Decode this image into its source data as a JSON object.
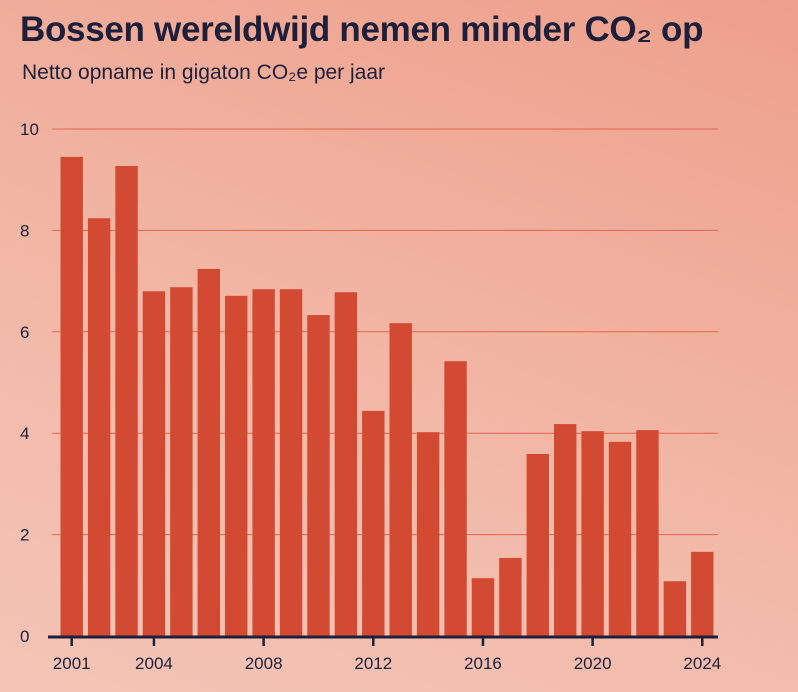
{
  "chart_data": {
    "type": "bar",
    "title": "Bossen wereldwijd nemen minder CO₂ op",
    "subtitle": "Netto opname in gigaton CO₂e per jaar",
    "categories": [
      "2001",
      "2002",
      "2003",
      "2004",
      "2005",
      "2006",
      "2007",
      "2008",
      "2009",
      "2010",
      "2011",
      "2012",
      "2013",
      "2014",
      "2015",
      "2016",
      "2017",
      "2018",
      "2019",
      "2020",
      "2021",
      "2022",
      "2023",
      "2024"
    ],
    "values": [
      9.45,
      8.24,
      9.27,
      6.8,
      6.88,
      7.24,
      6.71,
      6.84,
      6.84,
      6.33,
      6.78,
      4.44,
      6.17,
      4.02,
      5.42,
      1.14,
      1.54,
      3.59,
      4.18,
      4.04,
      3.83,
      4.06,
      1.08,
      1.66
    ],
    "ylim": [
      0,
      10
    ],
    "yticks": [
      0,
      2,
      4,
      6,
      8,
      10
    ],
    "xticks": [
      "2001",
      "2004",
      "2008",
      "2012",
      "2016",
      "2020",
      "2024"
    ],
    "grid": true,
    "colors": {
      "bar": "#d34a33",
      "grid": "#e4664c",
      "axis": "#1e1f3a"
    }
  }
}
